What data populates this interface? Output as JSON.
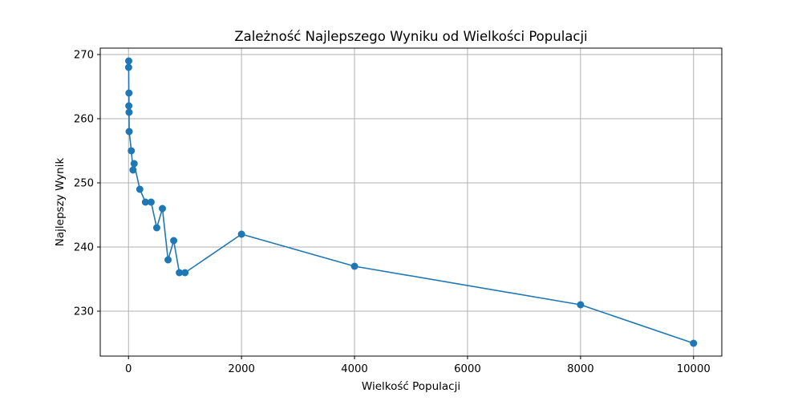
{
  "chart_data": {
    "type": "line",
    "title": "Zależność Najlepszego Wyniku od Wielkości Populacji",
    "xlabel": "Wielkość Populacji",
    "ylabel": "Najlepszy Wynik",
    "xlim": [
      -500,
      10500
    ],
    "ylim": [
      223,
      271
    ],
    "xticks": [
      0,
      2000,
      4000,
      6000,
      8000,
      10000
    ],
    "yticks": [
      230,
      240,
      250,
      260,
      270
    ],
    "grid": true,
    "marker": "circle",
    "series": [
      {
        "color": "#1f77b4",
        "points": [
          {
            "x": 2,
            "y": 268
          },
          {
            "x": 4,
            "y": 269
          },
          {
            "x": 6,
            "y": 262
          },
          {
            "x": 8,
            "y": 264
          },
          {
            "x": 10,
            "y": 261
          },
          {
            "x": 12,
            "y": 258
          },
          {
            "x": 50,
            "y": 255
          },
          {
            "x": 80,
            "y": 252
          },
          {
            "x": 100,
            "y": 253
          },
          {
            "x": 200,
            "y": 249
          },
          {
            "x": 300,
            "y": 247
          },
          {
            "x": 400,
            "y": 247
          },
          {
            "x": 500,
            "y": 243
          },
          {
            "x": 600,
            "y": 246
          },
          {
            "x": 700,
            "y": 238
          },
          {
            "x": 800,
            "y": 241
          },
          {
            "x": 900,
            "y": 236
          },
          {
            "x": 1000,
            "y": 236
          },
          {
            "x": 2000,
            "y": 242
          },
          {
            "x": 4000,
            "y": 237
          },
          {
            "x": 8000,
            "y": 231
          },
          {
            "x": 10000,
            "y": 225
          }
        ]
      }
    ]
  }
}
